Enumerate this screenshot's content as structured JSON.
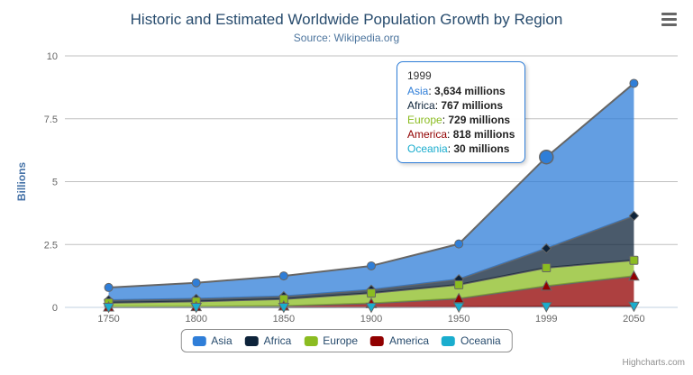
{
  "header": {
    "title": "Historic and Estimated Worldwide Population Growth by Region",
    "subtitle": "Source: Wikipedia.org"
  },
  "credits": "Highcharts.com",
  "colors": {
    "title": "#274b6d",
    "subtitle": "#4d759e",
    "axis_title": "#4572a7",
    "tick_label": "#666666",
    "grid": "#c0c0c0",
    "axis_line": "#c0d0e0",
    "series_line": "#666666",
    "legend_border": "#909090",
    "tooltip_border": "#2f7ed8"
  },
  "tooltip": {
    "header": "1999",
    "rows": [
      {
        "name": "Asia",
        "value": "3,634 millions",
        "color": "#2f7ed8"
      },
      {
        "name": "Africa",
        "value": "767 millions",
        "color": "#0d233a"
      },
      {
        "name": "Europe",
        "value": "729 millions",
        "color": "#8bbc21"
      },
      {
        "name": "America",
        "value": "818 millions",
        "color": "#910000"
      },
      {
        "name": "Oceania",
        "value": "30 millions",
        "color": "#1aadce"
      }
    ]
  },
  "legend": {
    "items": [
      {
        "label": "Asia",
        "color": "#2f7ed8"
      },
      {
        "label": "Africa",
        "color": "#0d233a"
      },
      {
        "label": "Europe",
        "color": "#8bbc21"
      },
      {
        "label": "America",
        "color": "#910000"
      },
      {
        "label": "Oceania",
        "color": "#1aadce"
      }
    ]
  },
  "chart_data": {
    "type": "area",
    "stacking": "normal",
    "title": "Historic and Estimated Worldwide Population Growth by Region",
    "subtitle": "Source: Wikipedia.org",
    "xlabel": "",
    "ylabel": "Billions",
    "units_millions": true,
    "ylim": [
      0,
      10
    ],
    "yticks": [
      0,
      2.5,
      5,
      7.5,
      10
    ],
    "categories": [
      "1750",
      "1800",
      "1850",
      "1900",
      "1950",
      "1999",
      "2050"
    ],
    "grid": true,
    "legend_position": "bottom",
    "fill_opacity": 0.75,
    "series": [
      {
        "name": "Asia",
        "color": "#2f7ed8",
        "marker": "circle",
        "values": [
          502,
          635,
          809,
          947,
          1402,
          3634,
          5268
        ]
      },
      {
        "name": "Africa",
        "color": "#0d233a",
        "marker": "diamond",
        "values": [
          106,
          107,
          111,
          133,
          221,
          767,
          1766
        ]
      },
      {
        "name": "Europe",
        "color": "#8bbc21",
        "marker": "square",
        "values": [
          163,
          203,
          276,
          408,
          547,
          729,
          628
        ]
      },
      {
        "name": "America",
        "color": "#910000",
        "marker": "triangle",
        "values": [
          18,
          31,
          54,
          156,
          339,
          818,
          1201
        ]
      },
      {
        "name": "Oceania",
        "color": "#1aadce",
        "marker": "triangle-down",
        "values": [
          2,
          2,
          2,
          6,
          13,
          30,
          46
        ]
      }
    ],
    "hover": {
      "series": "Asia",
      "category": "1999"
    }
  }
}
